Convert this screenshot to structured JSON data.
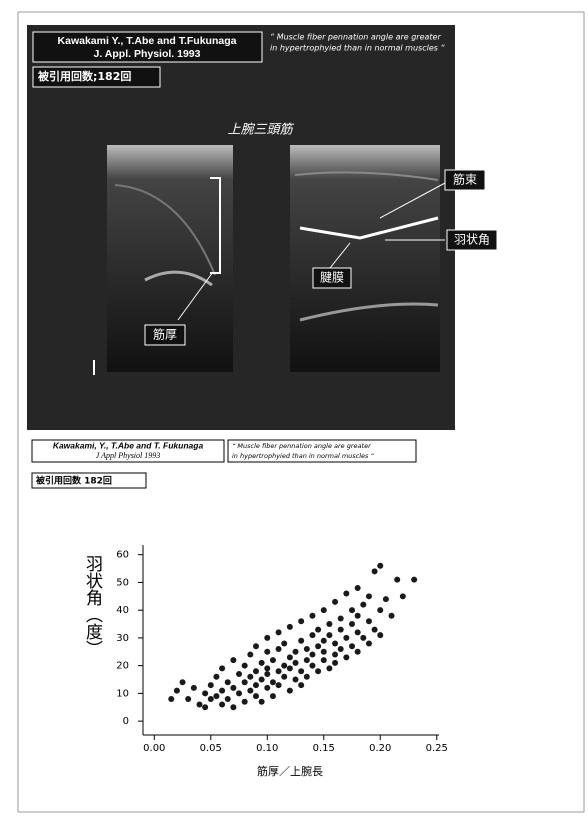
{
  "slide": {
    "citation_line1": "Kawakami Y., T.Abe and T.Fukunaga",
    "citation_line2": "J. Appl. Physiol. 1993",
    "quote_line1": "“ Muscle fiber pennation angle are greater",
    "quote_line2": "in hypertrophyied than in normal muscles “",
    "cited": "被引用回数;182回",
    "muscle": "上腕三頭筋",
    "label_fascicle": "筋束",
    "label_angle": "羽状角",
    "label_aponeurosis": "腱膜",
    "label_thickness": "筋厚"
  },
  "reference": {
    "citation_line1": "Kawakami, Y., T.Abe and T. Fukunaga",
    "citation_line2": "J Appl Physiol 1993",
    "quote_line1": "“ Muscle fiber pennation angle are greater",
    "quote_line2": "in hypertrophyied than in normal muscles “",
    "cited": "被引用回数 182回"
  },
  "chart_data": {
    "type": "scatter",
    "color": "#1a1a1a",
    "ylabel": "羽状角（度）",
    "xlabel": "筋厚／上腕長",
    "xlim": [
      -0.01,
      0.252
    ],
    "ylim": [
      -5,
      63.5
    ],
    "xticks": [
      {
        "value": 0,
        "label": "0.00"
      },
      0.05,
      {
        "value": 0.1,
        "label": "0.10"
      },
      0.15,
      {
        "value": 0.2,
        "label": "0.20"
      },
      0.25
    ],
    "yticks": [
      0,
      10,
      20,
      30,
      40,
      50,
      60
    ],
    "x": [
      0.015,
      0.02,
      0.025,
      0.03,
      0.035,
      0.04,
      0.045,
      0.045,
      0.05,
      0.05,
      0.055,
      0.055,
      0.06,
      0.06,
      0.06,
      0.065,
      0.065,
      0.07,
      0.07,
      0.07,
      0.075,
      0.075,
      0.08,
      0.08,
      0.08,
      0.085,
      0.085,
      0.085,
      0.09,
      0.09,
      0.09,
      0.09,
      0.095,
      0.095,
      0.095,
      0.1,
      0.1,
      0.1,
      0.1,
      0.1,
      0.105,
      0.105,
      0.105,
      0.11,
      0.11,
      0.11,
      0.11,
      0.115,
      0.115,
      0.115,
      0.12,
      0.12,
      0.12,
      0.12,
      0.125,
      0.125,
      0.125,
      0.13,
      0.13,
      0.13,
      0.13,
      0.135,
      0.135,
      0.135,
      0.14,
      0.14,
      0.14,
      0.14,
      0.145,
      0.145,
      0.145,
      0.15,
      0.15,
      0.15,
      0.15,
      0.155,
      0.155,
      0.155,
      0.16,
      0.16,
      0.16,
      0.16,
      0.165,
      0.165,
      0.165,
      0.17,
      0.17,
      0.17,
      0.175,
      0.175,
      0.175,
      0.18,
      0.18,
      0.18,
      0.18,
      0.185,
      0.185,
      0.19,
      0.19,
      0.19,
      0.195,
      0.195,
      0.2,
      0.2,
      0.2,
      0.205,
      0.21,
      0.215,
      0.22,
      0.23
    ],
    "y": [
      8,
      11,
      14,
      8,
      12,
      6,
      10,
      5,
      8,
      13,
      16,
      9,
      6,
      11,
      19,
      14,
      8,
      22,
      5,
      12,
      17,
      10,
      7,
      14,
      20,
      11,
      24,
      16,
      9,
      18,
      13,
      27,
      21,
      15,
      7,
      12,
      19,
      25,
      17,
      30,
      14,
      22,
      9,
      18,
      26,
      13,
      32,
      20,
      16,
      28,
      11,
      23,
      19,
      34,
      25,
      15,
      21,
      18,
      29,
      13,
      36,
      22,
      26,
      16,
      31,
      20,
      24,
      38,
      18,
      27,
      33,
      22,
      29,
      25,
      40,
      19,
      31,
      35,
      24,
      28,
      43,
      21,
      33,
      26,
      37,
      30,
      46,
      23,
      35,
      27,
      40,
      32,
      25,
      48,
      38,
      30,
      42,
      36,
      28,
      45,
      54,
      33,
      56,
      40,
      31,
      44,
      38,
      51,
      45,
      51
    ]
  }
}
